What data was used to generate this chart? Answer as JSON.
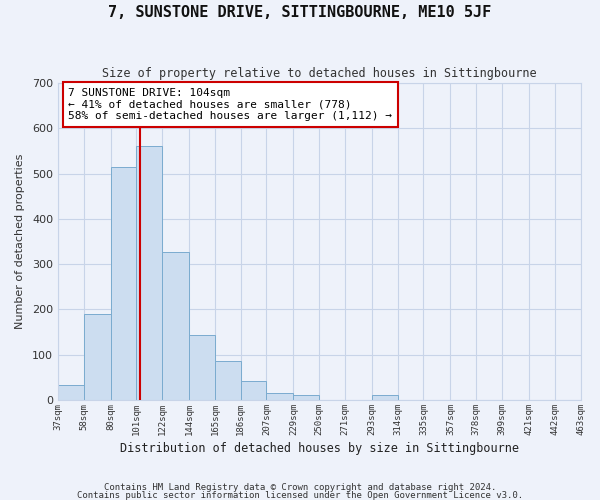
{
  "title": "7, SUNSTONE DRIVE, SITTINGBOURNE, ME10 5JF",
  "subtitle": "Size of property relative to detached houses in Sittingbourne",
  "xlabel": "Distribution of detached houses by size in Sittingbourne",
  "ylabel": "Number of detached properties",
  "bin_edges": [
    37,
    58,
    80,
    101,
    122,
    144,
    165,
    186,
    207,
    229,
    250,
    271,
    293,
    314,
    335,
    357,
    378,
    399,
    421,
    442,
    463
  ],
  "bin_heights": [
    33,
    190,
    515,
    560,
    328,
    143,
    87,
    42,
    15,
    12,
    0,
    0,
    10,
    0,
    0,
    0,
    0,
    0,
    0,
    0
  ],
  "bar_facecolor": "#ccddf0",
  "bar_edgecolor": "#7aabcf",
  "grid_color": "#c8d4e8",
  "background_color": "#eef2fa",
  "vline_x": 104,
  "vline_color": "#cc0000",
  "annotation_line1": "7 SUNSTONE DRIVE: 104sqm",
  "annotation_line2": "← 41% of detached houses are smaller (778)",
  "annotation_line3": "58% of semi-detached houses are larger (1,112) →",
  "annotation_box_edgecolor": "#cc0000",
  "annotation_box_facecolor": "#ffffff",
  "ylim": [
    0,
    700
  ],
  "yticks": [
    0,
    100,
    200,
    300,
    400,
    500,
    600,
    700
  ],
  "tick_labels": [
    "37sqm",
    "58sqm",
    "80sqm",
    "101sqm",
    "122sqm",
    "144sqm",
    "165sqm",
    "186sqm",
    "207sqm",
    "229sqm",
    "250sqm",
    "271sqm",
    "293sqm",
    "314sqm",
    "335sqm",
    "357sqm",
    "378sqm",
    "399sqm",
    "421sqm",
    "442sqm",
    "463sqm"
  ],
  "footnote1": "Contains HM Land Registry data © Crown copyright and database right 2024.",
  "footnote2": "Contains public sector information licensed under the Open Government Licence v3.0."
}
